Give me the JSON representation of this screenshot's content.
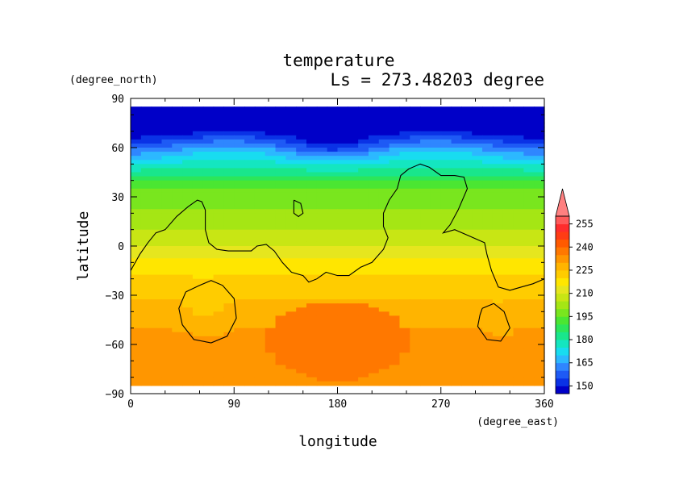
{
  "chart_data": {
    "type": "heatmap",
    "title": "temperature",
    "subtitle": "Ls = 273.48203 degree",
    "xlabel": "longitude",
    "ylabel": "latitude",
    "x_unit": "(degree_east)",
    "y_unit": "(degree_north)",
    "xlim": [
      0,
      360
    ],
    "ylim": [
      -90,
      90
    ],
    "x_ticks": [
      "0",
      "90",
      "180",
      "270",
      "360"
    ],
    "y_ticks": [
      "90",
      "60",
      "30",
      "0",
      "−30",
      "−60",
      "−90"
    ],
    "colorbar": {
      "levels": [
        145,
        150,
        155,
        160,
        165,
        170,
        175,
        180,
        185,
        190,
        195,
        200,
        205,
        210,
        215,
        220,
        225,
        230,
        235,
        240,
        245,
        250,
        255,
        260
      ],
      "tick_labels": [
        "255",
        "240",
        "225",
        "210",
        "195",
        "180",
        "165",
        "150"
      ],
      "colors": [
        "#0000c8",
        "#0a32e6",
        "#1e5af5",
        "#2f86ff",
        "#2cb8ff",
        "#18dcf0",
        "#14e6c0",
        "#19e68c",
        "#2ce65a",
        "#4be632",
        "#79e61e",
        "#a5e614",
        "#c8e614",
        "#e6e61e",
        "#ffe600",
        "#ffcc00",
        "#ffb400",
        "#ff9600",
        "#ff7800",
        "#ff5a00",
        "#ff3c14",
        "#ff2d2d",
        "#ff5a5a",
        "#ff8080"
      ],
      "extend": "max"
    },
    "grid": false,
    "legend_position": "right",
    "contour": "coastline at zero-elevation (black line)"
  }
}
